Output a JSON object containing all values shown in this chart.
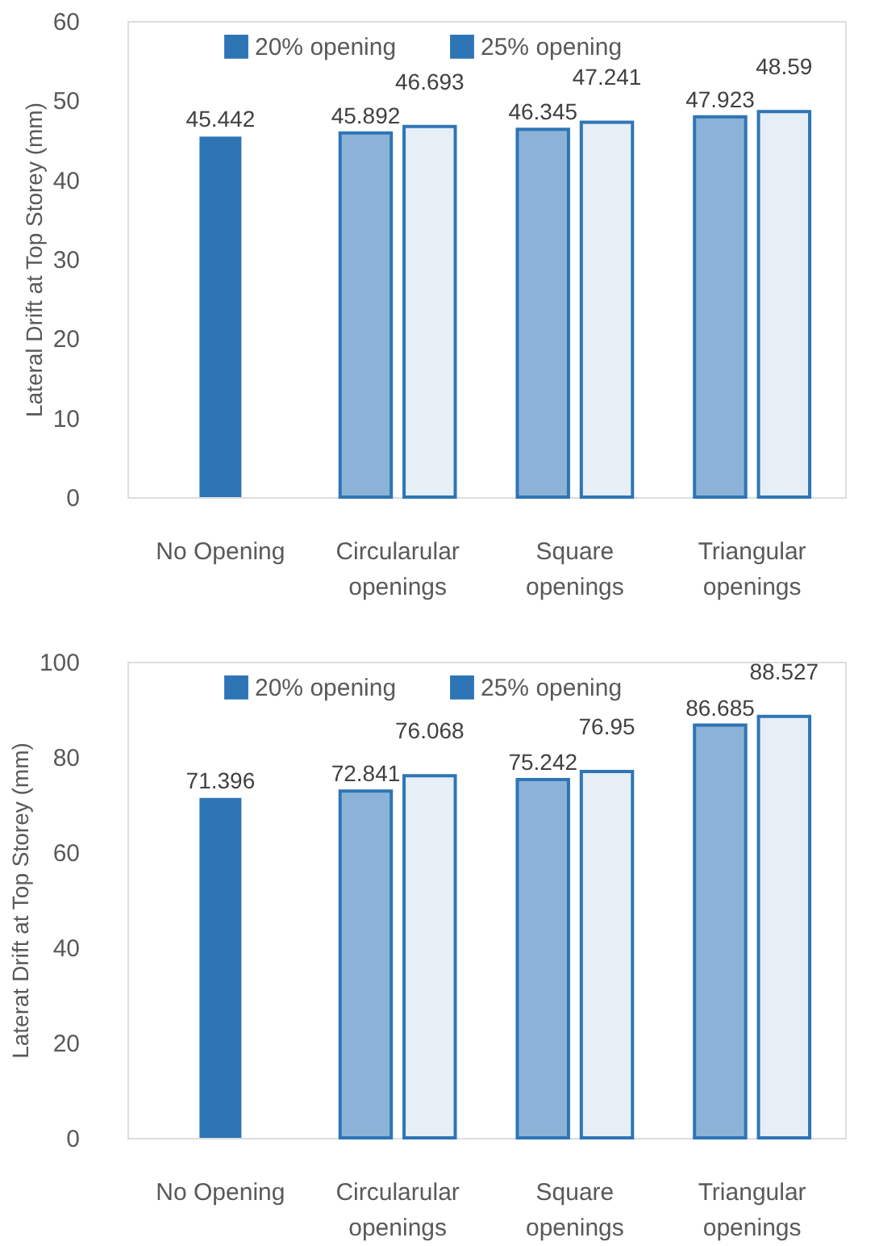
{
  "chart_data": [
    {
      "type": "bar",
      "ylabel": "Lateral Drift at Top Storey (mm)",
      "categories": [
        "No Opening",
        "Circularular openings",
        "Square openings",
        "Triangular openings"
      ],
      "series": [
        {
          "color": "#2e75b6",
          "values": [
            45.442,
            null,
            null,
            null
          ]
        },
        {
          "name": "20% opening",
          "color": "#2e75b6",
          "values": [
            null,
            45.892,
            46.345,
            47.923
          ]
        },
        {
          "name": "25% opening",
          "color": "#2e75b6",
          "values": [
            null,
            46.693,
            47.241,
            48.59
          ]
        }
      ],
      "ylim": [
        0,
        60
      ],
      "yticks": [
        0,
        10,
        20,
        30,
        40,
        50,
        60
      ],
      "grid": false,
      "legend": "top",
      "data_labels": true
    },
    {
      "type": "bar",
      "ylabel": "Laterat Drift at Top Storey (mm)",
      "categories": [
        "No Opening",
        "Circularular openings",
        "Square openings",
        "Triangular openings"
      ],
      "series": [
        {
          "color": "#2e75b6",
          "values": [
            71.396,
            null,
            null,
            null
          ]
        },
        {
          "name": "20% opening",
          "color": "#2e75b6",
          "values": [
            null,
            72.841,
            75.242,
            86.685
          ]
        },
        {
          "name": "25% opening",
          "color": "#2e75b6",
          "values": [
            null,
            76.068,
            76.95,
            88.527
          ]
        }
      ],
      "ylim": [
        0,
        100
      ],
      "yticks": [
        0,
        20,
        40,
        60,
        80,
        100
      ],
      "grid": false,
      "legend": "top",
      "data_labels": true
    }
  ]
}
